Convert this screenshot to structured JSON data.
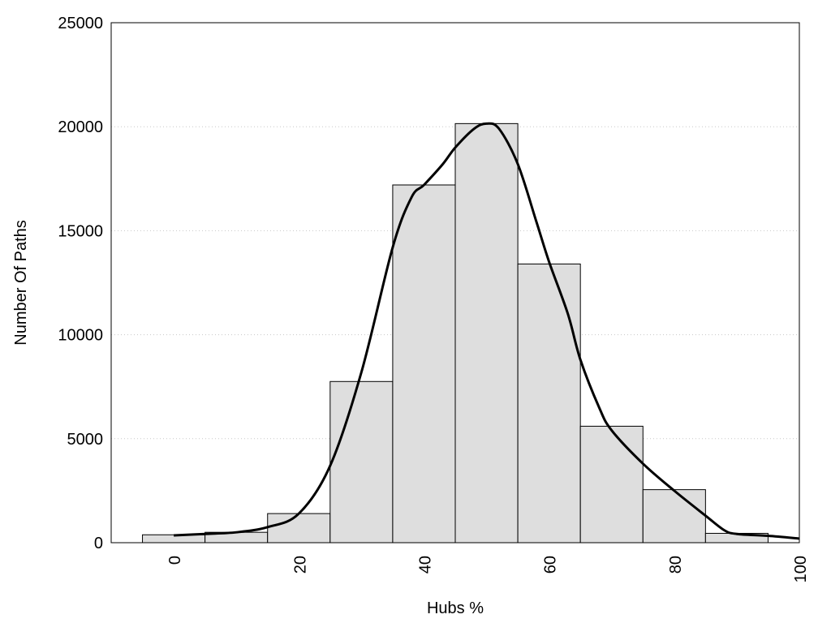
{
  "chart_data": {
    "type": "bar",
    "title": "",
    "xlabel": "Hubs %",
    "ylabel": "Number Of Paths",
    "xlim": [
      -10,
      100
    ],
    "ylim": [
      0,
      25000
    ],
    "xticks": [
      0,
      20,
      40,
      60,
      80,
      100
    ],
    "yticks": [
      0,
      5000,
      10000,
      15000,
      20000,
      25000
    ],
    "grid": "horizontal dotted",
    "bin_width": 10,
    "bins": [
      {
        "center": 0,
        "value": 380
      },
      {
        "center": 10,
        "value": 500
      },
      {
        "center": 20,
        "value": 1400
      },
      {
        "center": 30,
        "value": 7750
      },
      {
        "center": 40,
        "value": 17200
      },
      {
        "center": 50,
        "value": 20150
      },
      {
        "center": 60,
        "value": 13400
      },
      {
        "center": 70,
        "value": 5600
      },
      {
        "center": 80,
        "value": 2550
      },
      {
        "center": 90,
        "value": 450
      }
    ],
    "density_curve": {
      "x": [
        0,
        5,
        10,
        15,
        20,
        25,
        30,
        35,
        38,
        40,
        43,
        45,
        48,
        50,
        52,
        55,
        58,
        60,
        63,
        65,
        68,
        70,
        75,
        80,
        85,
        88,
        90,
        95,
        100
      ],
      "y": [
        350,
        420,
        500,
        750,
        1400,
        3700,
        8200,
        14200,
        16600,
        17200,
        18200,
        19000,
        19900,
        20150,
        19900,
        18200,
        15400,
        13500,
        11000,
        8800,
        6500,
        5400,
        3800,
        2500,
        1300,
        600,
        420,
        330,
        200
      ]
    },
    "colors": {
      "bar_fill": "#dedede",
      "bar_stroke": "#000000",
      "curve": "#000000",
      "grid": "#c8c8c8"
    }
  }
}
